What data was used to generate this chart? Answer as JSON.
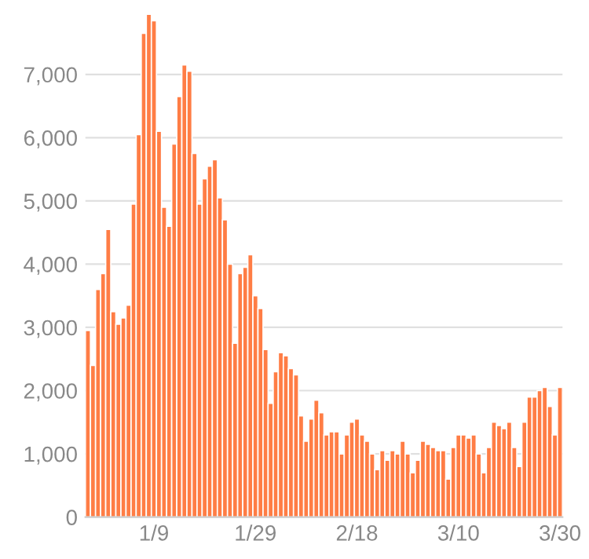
{
  "chart_data": {
    "type": "bar",
    "categories": [
      null,
      null,
      null,
      null,
      null,
      null,
      null,
      null,
      null,
      null,
      null,
      null,
      null,
      "1/9",
      null,
      null,
      null,
      null,
      null,
      null,
      null,
      null,
      null,
      null,
      null,
      null,
      null,
      null,
      null,
      null,
      null,
      null,
      null,
      "1/29",
      null,
      null,
      null,
      null,
      null,
      null,
      null,
      null,
      null,
      null,
      null,
      null,
      null,
      null,
      null,
      null,
      null,
      null,
      null,
      "2/18",
      null,
      null,
      null,
      null,
      null,
      null,
      null,
      null,
      null,
      null,
      null,
      null,
      null,
      null,
      null,
      null,
      null,
      null,
      null,
      "3/10",
      null,
      null,
      null,
      null,
      null,
      null,
      null,
      null,
      null,
      null,
      null,
      null,
      null,
      null,
      null,
      null,
      null,
      null,
      null,
      "3/30"
    ],
    "values": [
      2950,
      2400,
      3600,
      3850,
      4550,
      3250,
      3050,
      3150,
      3350,
      4950,
      6050,
      7650,
      7950,
      7850,
      6100,
      4900,
      4600,
      5900,
      6650,
      7150,
      7050,
      5750,
      4950,
      5350,
      5550,
      5650,
      5050,
      4700,
      4000,
      2750,
      3850,
      3950,
      4150,
      3500,
      3300,
      2650,
      1800,
      2300,
      2600,
      2550,
      2350,
      2250,
      1600,
      1200,
      1550,
      1850,
      1650,
      1300,
      1350,
      1350,
      1000,
      1300,
      1500,
      1550,
      1300,
      1200,
      1000,
      750,
      1050,
      900,
      1050,
      1000,
      1200,
      1000,
      700,
      900,
      1200,
      1150,
      1100,
      1050,
      1050,
      600,
      1100,
      1300,
      1300,
      1250,
      1300,
      1000,
      700,
      1100,
      1500,
      1450,
      1400,
      1500,
      1100,
      800,
      1500,
      1900,
      1900,
      2000,
      2050,
      1750,
      1300,
      2050
    ],
    "color": "#ff7d45",
    "ylim": [
      0,
      8000
    ],
    "yticks": [
      {
        "value": 0,
        "label": "0"
      },
      {
        "value": 1000,
        "label": "1,000"
      },
      {
        "value": 2000,
        "label": "2,000"
      },
      {
        "value": 3000,
        "label": "3,000"
      },
      {
        "value": 4000,
        "label": "4,000"
      },
      {
        "value": 5000,
        "label": "5,000"
      },
      {
        "value": 6000,
        "label": "6,000"
      },
      {
        "value": 7000,
        "label": "7,000"
      }
    ],
    "grid": "y"
  }
}
